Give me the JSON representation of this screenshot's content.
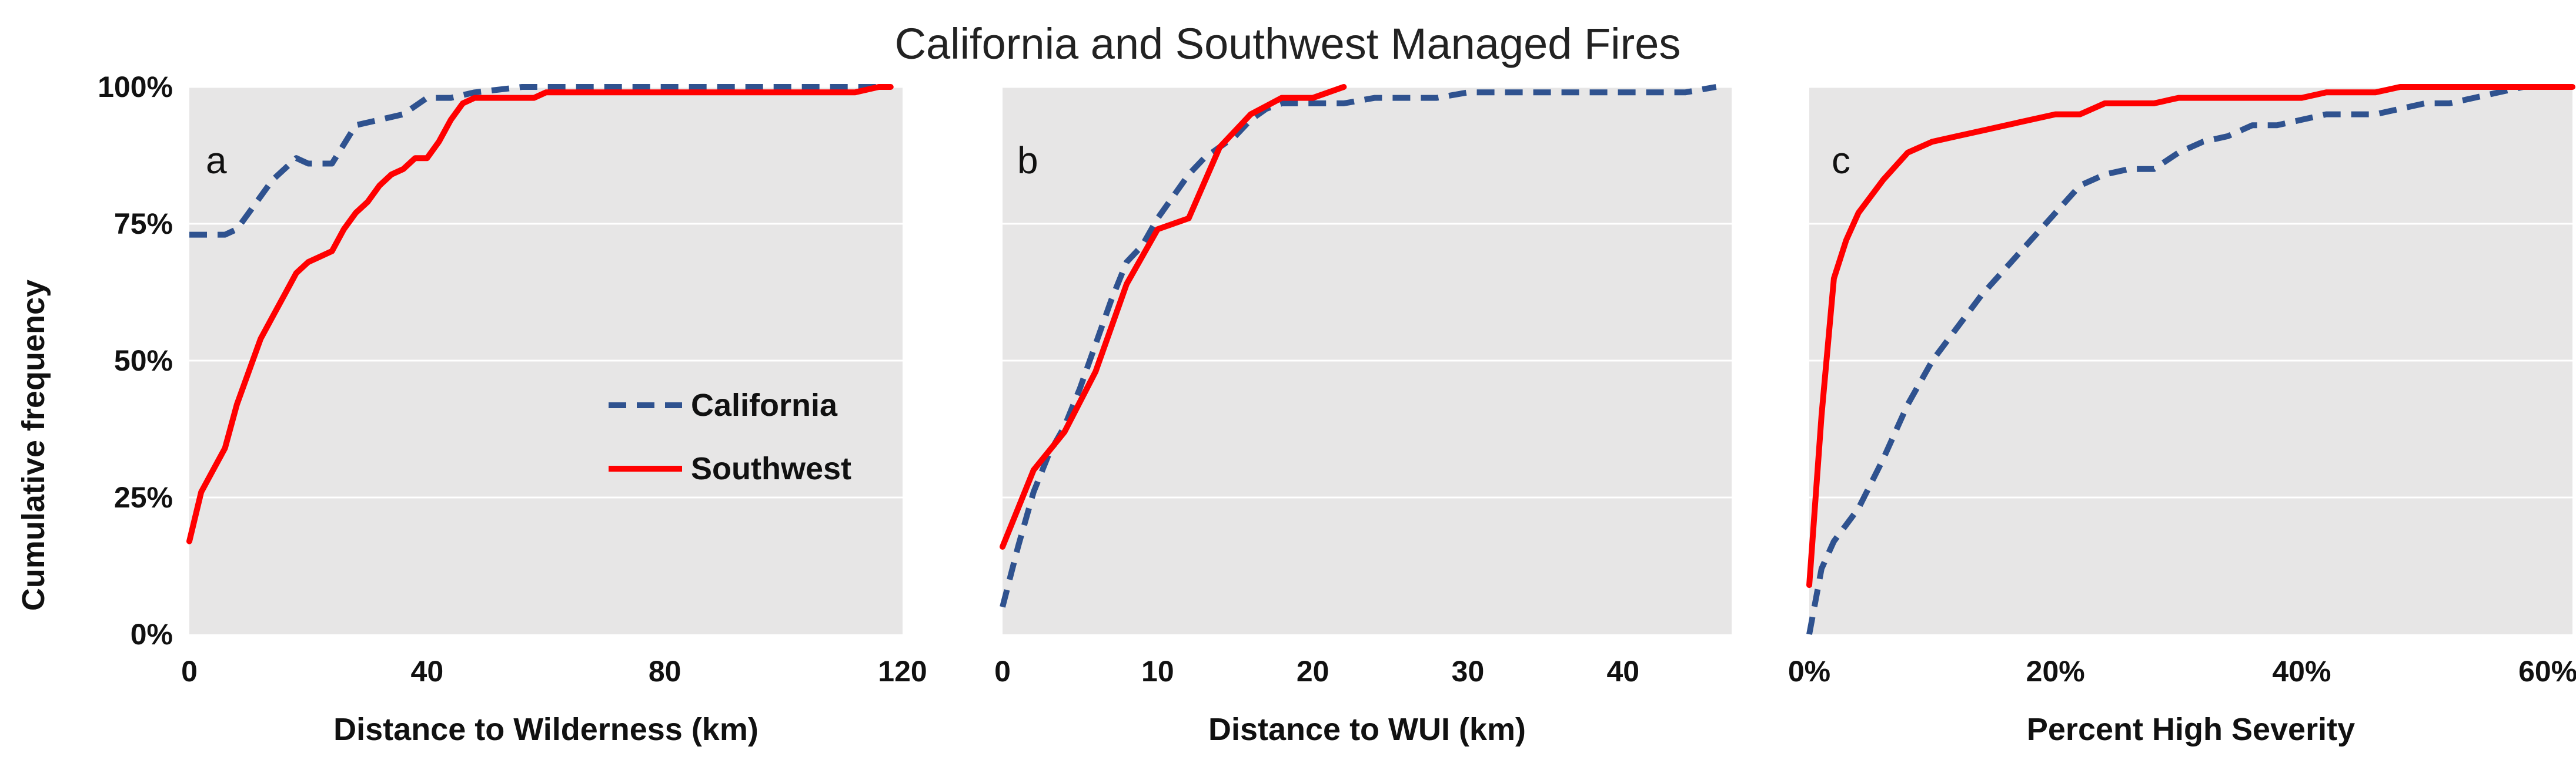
{
  "figure": {
    "title": "California and Southwest Managed Fires",
    "ylabel": "Cumulative frequency"
  },
  "legend": {
    "placement": "inside panel a, center-right",
    "entries": [
      {
        "name": "California",
        "style": "dashed",
        "color": "#2F528F"
      },
      {
        "name": "Southwest",
        "style": "solid",
        "color": "#FF0000"
      }
    ]
  },
  "colors": {
    "california": "#2F528F",
    "southwest": "#FF0000",
    "plot_background": "#E7E6E6",
    "gridline": "#FFFFFF"
  },
  "chart_data": [
    {
      "type": "line",
      "panel": "a",
      "xlabel": "Distance to Wilderness (km)",
      "ylabel": "Cumulative frequency",
      "xlim": [
        0,
        120
      ],
      "ylim": [
        0,
        100
      ],
      "x_ticks": [
        0,
        40,
        80,
        120
      ],
      "x_tick_labels": [
        "0",
        "40",
        "80",
        "120"
      ],
      "y_ticks": [
        0,
        25,
        50,
        75,
        100
      ],
      "y_tick_labels": [
        "0%",
        "25%",
        "50%",
        "75%",
        "100%"
      ],
      "grid": "horizontal",
      "series": [
        {
          "name": "California",
          "x": [
            0,
            2,
            4,
            6,
            8,
            10,
            14,
            18,
            20,
            22,
            24,
            28,
            32,
            36,
            40,
            44,
            48,
            56,
            70,
            80,
            100,
            118
          ],
          "y": [
            73,
            73,
            73,
            73,
            74,
            77,
            83,
            87,
            86,
            86,
            86,
            93,
            94,
            95,
            98,
            98,
            99,
            100,
            100,
            100,
            100,
            100
          ]
        },
        {
          "name": "Southwest",
          "x": [
            0,
            2,
            4,
            6,
            8,
            10,
            12,
            14,
            16,
            18,
            20,
            22,
            24,
            26,
            28,
            30,
            32,
            34,
            36,
            38,
            40,
            42,
            44,
            46,
            48,
            52,
            56,
            58,
            60,
            70,
            74,
            76,
            80,
            90,
            100,
            110,
            112,
            116,
            118
          ],
          "y": [
            17,
            26,
            30,
            34,
            42,
            48,
            54,
            58,
            62,
            66,
            68,
            69,
            70,
            74,
            77,
            79,
            82,
            84,
            85,
            87,
            87,
            90,
            94,
            97,
            98,
            98,
            98,
            98,
            99,
            99,
            99,
            99,
            99,
            99,
            99,
            99,
            99,
            100,
            100
          ]
        }
      ]
    },
    {
      "type": "line",
      "panel": "b",
      "xlabel": "Distance to WUI (km)",
      "xlim": [
        0,
        47
      ],
      "ylim": [
        0,
        100
      ],
      "x_ticks": [
        0,
        10,
        20,
        30,
        40
      ],
      "x_tick_labels": [
        "0",
        "10",
        "20",
        "30",
        "40"
      ],
      "y_ticks": [
        0,
        25,
        50,
        75,
        100
      ],
      "grid": "horizontal",
      "series": [
        {
          "name": "California",
          "x": [
            0,
            1,
            2,
            3,
            4,
            5,
            6,
            7,
            8,
            9,
            10,
            11,
            12,
            13,
            14,
            15,
            16,
            17,
            18,
            20,
            22,
            24,
            26,
            28,
            30,
            32,
            34,
            36,
            38,
            40,
            42,
            44,
            46
          ],
          "y": [
            5,
            16,
            26,
            33,
            38,
            45,
            53,
            61,
            68,
            71,
            76,
            80,
            84,
            87,
            89,
            91,
            94,
            96,
            97,
            97,
            97,
            98,
            98,
            98,
            99,
            99,
            99,
            99,
            99,
            99,
            99,
            99,
            100
          ]
        },
        {
          "name": "Southwest",
          "x": [
            0,
            2,
            4,
            6,
            8,
            10,
            12,
            14,
            16,
            18,
            20,
            22
          ],
          "y": [
            16,
            30,
            37,
            48,
            64,
            74,
            76,
            89,
            95,
            98,
            98,
            100
          ]
        }
      ]
    },
    {
      "type": "line",
      "panel": "c",
      "xlabel": "Percent High Severity",
      "xlim": [
        0,
        62
      ],
      "ylim": [
        0,
        100
      ],
      "x_ticks": [
        0,
        20,
        40,
        60
      ],
      "x_tick_labels": [
        "0%",
        "20%",
        "40%",
        "60%"
      ],
      "y_ticks": [
        0,
        25,
        50,
        75,
        100
      ],
      "grid": "horizontal",
      "series": [
        {
          "name": "California",
          "x": [
            0,
            1,
            2,
            4,
            6,
            8,
            10,
            12,
            14,
            16,
            18,
            20,
            22,
            24,
            26,
            28,
            30,
            32,
            34,
            36,
            38,
            40,
            42,
            44,
            46,
            48,
            50,
            52,
            54,
            56,
            58,
            60,
            62
          ],
          "y": [
            0,
            12,
            17,
            23,
            32,
            42,
            50,
            56,
            62,
            67,
            72,
            77,
            82,
            84,
            85,
            85,
            88,
            90,
            91,
            93,
            93,
            94,
            95,
            95,
            95,
            96,
            97,
            97,
            98,
            99,
            100,
            100,
            100
          ]
        },
        {
          "name": "Southwest",
          "x": [
            0,
            1,
            2,
            3,
            4,
            6,
            8,
            10,
            12,
            14,
            16,
            18,
            20,
            22,
            24,
            26,
            28,
            30,
            32,
            34,
            36,
            38,
            40,
            42,
            44,
            46,
            48,
            50,
            52,
            54,
            56,
            58,
            60,
            62
          ],
          "y": [
            9,
            40,
            65,
            72,
            77,
            83,
            88,
            90,
            91,
            92,
            93,
            94,
            95,
            95,
            97,
            97,
            97,
            98,
            98,
            98,
            98,
            98,
            98,
            99,
            99,
            99,
            100,
            100,
            100,
            100,
            100,
            100,
            100,
            100
          ]
        }
      ]
    }
  ]
}
